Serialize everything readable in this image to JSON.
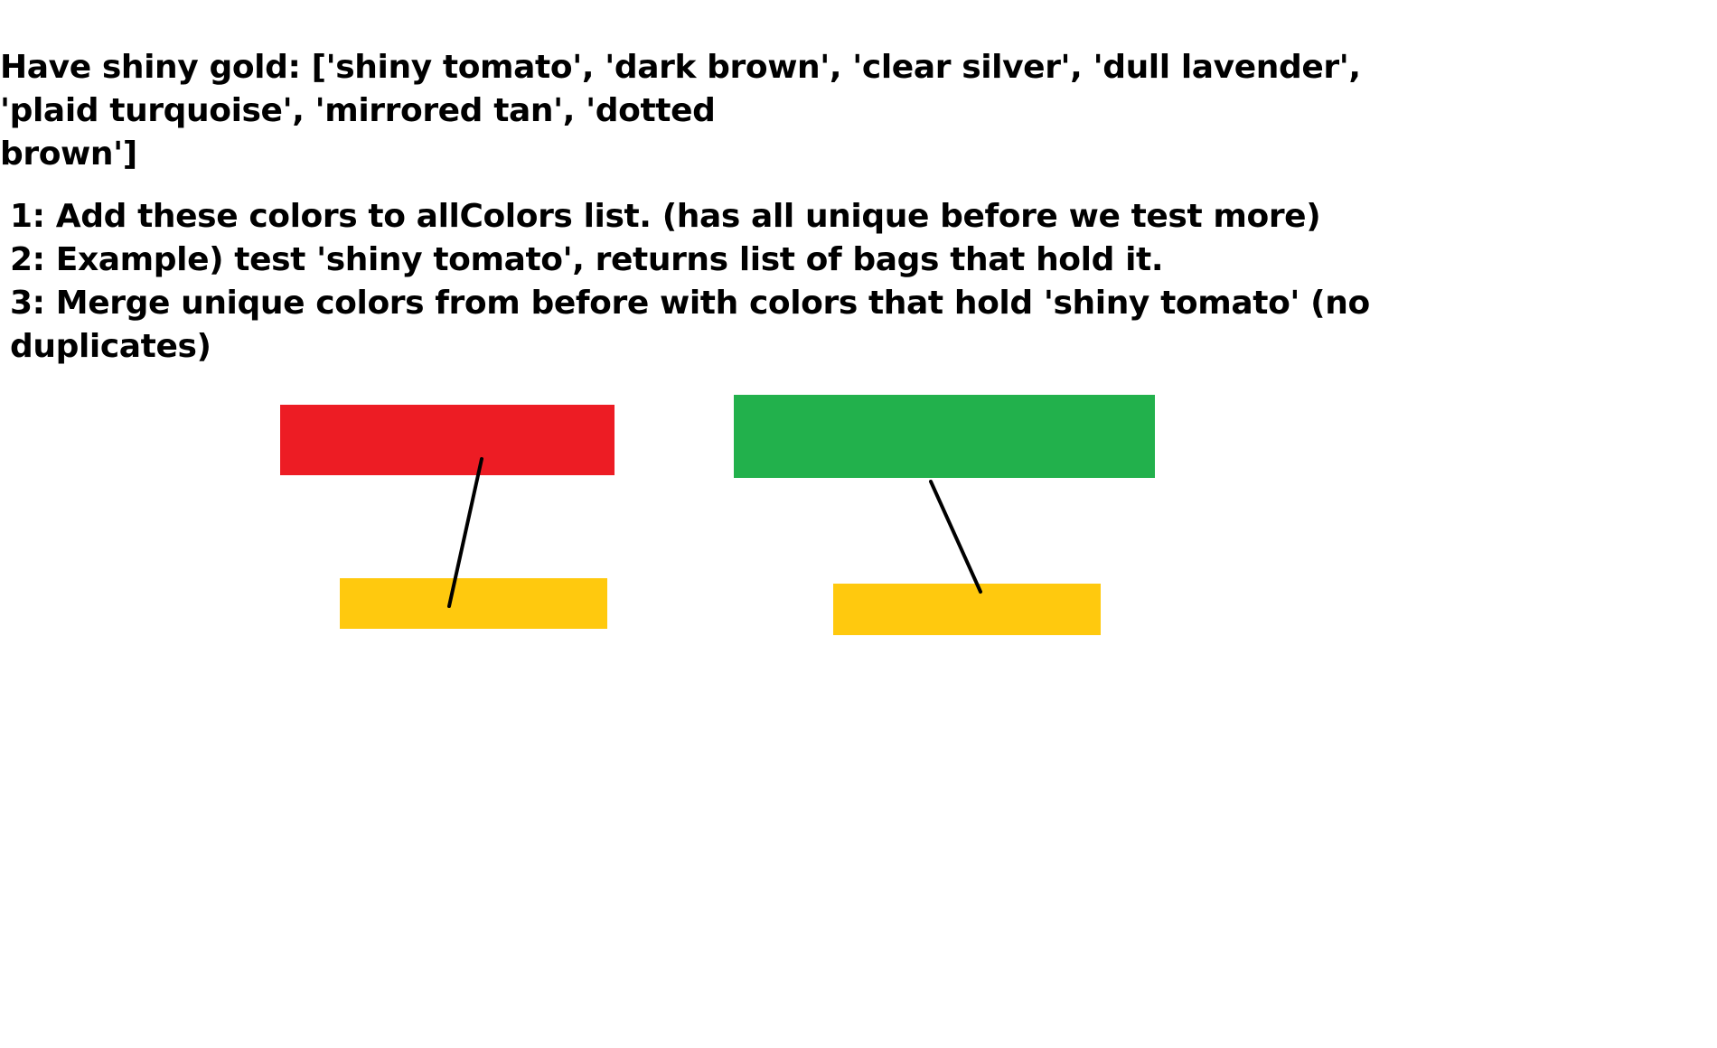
{
  "heading": {
    "lines": [
      "Have shiny gold: ['shiny tomato', 'dark brown', 'clear silver', 'dull lavender',",
      "'plaid turquoise', 'mirrored tan', 'dotted",
      "brown']"
    ]
  },
  "steps": {
    "lines": [
      "1: Add these colors to allColors list. (has all unique before we test more)",
      "2: Example) test 'shiny tomato', returns list of bags that hold it.",
      "3: Merge unique colors from before with colors that hold 'shiny tomato' (no",
      "duplicates)"
    ]
  },
  "diagram": {
    "colors": {
      "red": "#ed1c24",
      "green": "#22b14c",
      "yellow": "#ffc90e",
      "connector": "#000000"
    }
  }
}
